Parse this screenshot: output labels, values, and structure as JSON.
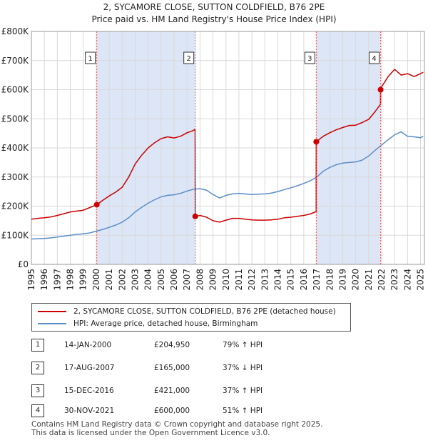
{
  "chart_data": {
    "type": "line",
    "title": "2, SYCAMORE CLOSE, SUTTON COLDFIELD, B76 2PE",
    "subtitle": "Price paid vs. HM Land Registry's House Price Index (HPI)",
    "xlabel": "",
    "ylabel": "",
    "xlim": [
      1995,
      2025.3
    ],
    "ylim": [
      0,
      800000
    ],
    "x_ticks": [
      "1995",
      "1996",
      "1997",
      "1998",
      "1999",
      "2000",
      "2001",
      "2002",
      "2003",
      "2004",
      "2005",
      "2006",
      "2007",
      "2008",
      "2009",
      "2010",
      "2011",
      "2012",
      "2013",
      "2014",
      "2015",
      "2016",
      "2017",
      "2018",
      "2019",
      "2020",
      "2021",
      "2022",
      "2023",
      "2024",
      "2025"
    ],
    "y_ticks": [
      "£0",
      "£100K",
      "£200K",
      "£300K",
      "£400K",
      "£500K",
      "£600K",
      "£700K",
      "£800K"
    ],
    "grid": true,
    "series": [
      {
        "name": "2, SYCAMORE CLOSE, SUTTON COLDFIELD, B76 2PE (detached house)",
        "color": "#cc0000",
        "x": [
          1995.0,
          1995.5,
          1996.0,
          1996.5,
          1997.0,
          1997.5,
          1998.0,
          1998.5,
          1999.0,
          1999.5,
          2000.04,
          2000.5,
          2001.0,
          2001.5,
          2002.0,
          2002.5,
          2003.0,
          2003.5,
          2004.0,
          2004.5,
          2005.0,
          2005.5,
          2006.0,
          2006.5,
          2007.0,
          2007.5,
          2007.62,
          2007.63,
          2008.0,
          2008.5,
          2009.0,
          2009.5,
          2010.0,
          2010.5,
          2011.0,
          2011.5,
          2012.0,
          2012.5,
          2013.0,
          2013.5,
          2014.0,
          2014.5,
          2015.0,
          2015.5,
          2016.0,
          2016.5,
          2016.95,
          2016.96,
          2017.5,
          2018.0,
          2018.5,
          2019.0,
          2019.5,
          2020.0,
          2020.5,
          2021.0,
          2021.5,
          2021.91,
          2021.92,
          2022.0,
          2022.5,
          2023.0,
          2023.5,
          2024.0,
          2024.5,
          2025.0,
          2025.2
        ],
        "values": [
          155000,
          158000,
          160000,
          163000,
          168000,
          174000,
          180000,
          183000,
          186000,
          195000,
          204950,
          220000,
          235000,
          248000,
          265000,
          300000,
          345000,
          375000,
          400000,
          418000,
          432000,
          438000,
          434000,
          440000,
          452000,
          460000,
          465000,
          165000,
          168000,
          162000,
          150000,
          145000,
          152000,
          158000,
          158000,
          155000,
          153000,
          152000,
          152000,
          153000,
          155000,
          160000,
          162000,
          165000,
          168000,
          173000,
          181000,
          421000,
          440000,
          452000,
          462000,
          470000,
          477000,
          478000,
          487000,
          498000,
          525000,
          550000,
          600000,
          610000,
          645000,
          670000,
          650000,
          655000,
          645000,
          655000,
          660000
        ]
      },
      {
        "name": "HPI: Average price, detached house, Birmingham",
        "color": "#5b8ec8",
        "x": [
          1995.0,
          1995.5,
          1996.0,
          1996.5,
          1997.0,
          1997.5,
          1998.0,
          1998.5,
          1999.0,
          1999.5,
          2000.0,
          2000.5,
          2001.0,
          2001.5,
          2002.0,
          2002.5,
          2003.0,
          2003.5,
          2004.0,
          2004.5,
          2005.0,
          2005.5,
          2006.0,
          2006.5,
          2007.0,
          2007.5,
          2008.0,
          2008.5,
          2009.0,
          2009.5,
          2010.0,
          2010.5,
          2011.0,
          2011.5,
          2012.0,
          2012.5,
          2013.0,
          2013.5,
          2014.0,
          2014.5,
          2015.0,
          2015.5,
          2016.0,
          2016.5,
          2017.0,
          2017.5,
          2018.0,
          2018.5,
          2019.0,
          2019.5,
          2020.0,
          2020.5,
          2021.0,
          2021.5,
          2022.0,
          2022.5,
          2023.0,
          2023.5,
          2024.0,
          2024.5,
          2025.0,
          2025.2
        ],
        "values": [
          87000,
          88000,
          89000,
          91000,
          94000,
          97000,
          100000,
          103000,
          105000,
          108000,
          114000,
          120000,
          127000,
          135000,
          145000,
          160000,
          180000,
          196000,
          210000,
          222000,
          232000,
          237000,
          239000,
          244000,
          252000,
          258000,
          260000,
          255000,
          240000,
          228000,
          237000,
          242000,
          244000,
          242000,
          240000,
          241000,
          242000,
          245000,
          250000,
          257000,
          263000,
          270000,
          278000,
          287000,
          300000,
          320000,
          333000,
          342000,
          348000,
          350000,
          352000,
          358000,
          372000,
          392000,
          410000,
          428000,
          445000,
          455000,
          440000,
          438000,
          435000,
          440000
        ]
      }
    ],
    "markers": [
      {
        "label": "1",
        "x": 2000.04,
        "y": 204950
      },
      {
        "label": "2",
        "x": 2007.63,
        "y": 165000
      },
      {
        "label": "3",
        "x": 2016.96,
        "y": 421000
      },
      {
        "label": "4",
        "x": 2021.92,
        "y": 600000
      }
    ],
    "shaded_periods": [
      [
        2000.04,
        2007.63
      ],
      [
        2016.96,
        2021.92
      ]
    ]
  },
  "legend": {
    "property_label": "2, SYCAMORE CLOSE, SUTTON COLDFIELD, B76 2PE (detached house)",
    "hpi_label": "HPI: Average price, detached house, Birmingham"
  },
  "transactions": [
    {
      "num": "1",
      "date": "14-JAN-2000",
      "price": "£204,950",
      "hpi": "79% ↑ HPI"
    },
    {
      "num": "2",
      "date": "17-AUG-2007",
      "price": "£165,000",
      "hpi": "37% ↓ HPI"
    },
    {
      "num": "3",
      "date": "15-DEC-2016",
      "price": "£421,000",
      "hpi": "37% ↑ HPI"
    },
    {
      "num": "4",
      "date": "30-NOV-2021",
      "price": "£600,000",
      "hpi": "51% ↑ HPI"
    }
  ],
  "footer": {
    "line1": "Contains HM Land Registry data © Crown copyright and database right 2025.",
    "line2": "This data is licensed under the Open Government Licence v3.0."
  }
}
